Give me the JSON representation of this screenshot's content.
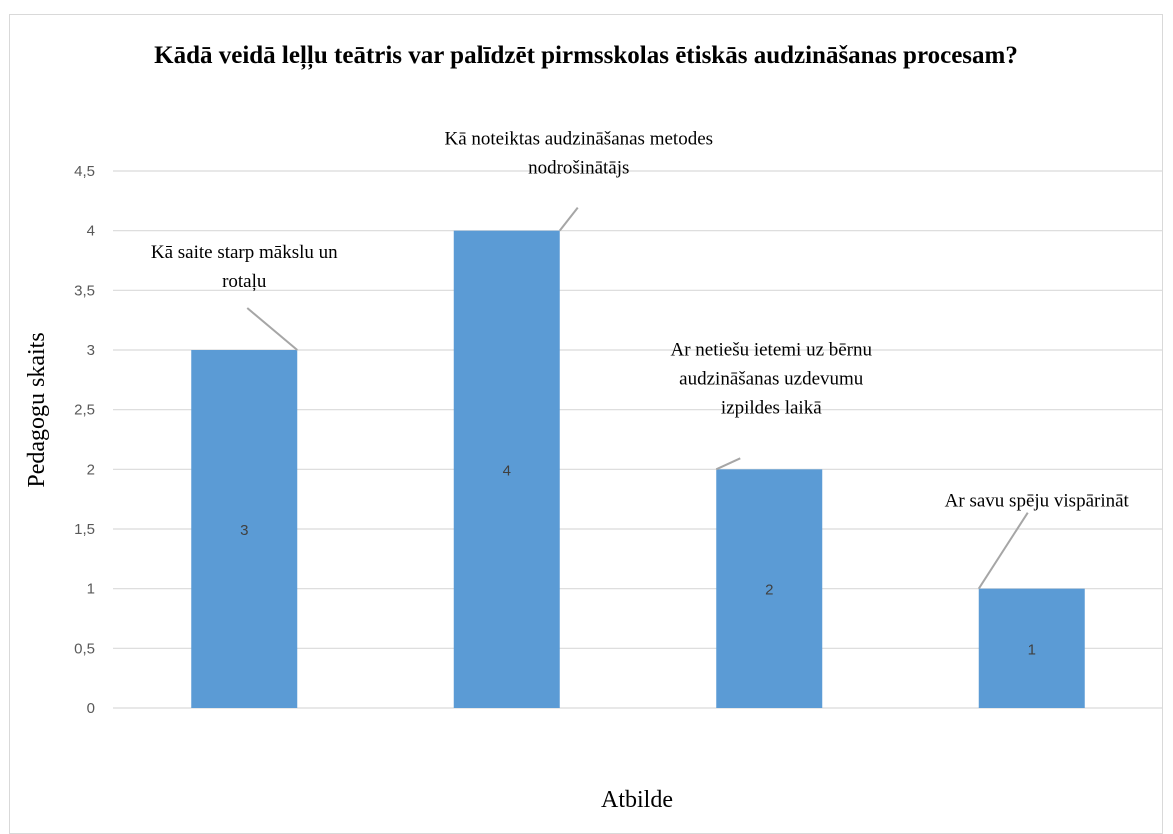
{
  "chart_data": {
    "type": "bar",
    "title": "Kādā veidā leļļu teātris var palīdzēt pirmsskolas ētiskās audzināšanas procesam?",
    "xlabel": "Atbilde",
    "ylabel": "Pedagogu skaits",
    "ylim": [
      0,
      4.5
    ],
    "y_ticks": [
      "0",
      "0,5",
      "1",
      "1,5",
      "2",
      "2,5",
      "3",
      "3,5",
      "4",
      "4,5"
    ],
    "categories": [
      "Kā saite starp mākslu un rotaļu",
      "Kā noteiktas audzināšanas metodes nodrošinātājs",
      "Ar netiešu ietemi uz bērnu audzināšanas uzdevumu izpildes laikā",
      "Ar savu spēju vispārināt"
    ],
    "category_label_lines": [
      [
        "Kā saite starp mākslu un",
        "rotaļu"
      ],
      [
        "Kā  noteiktas audzināšanas metodes",
        "nodrošinātājs"
      ],
      [
        "Ar netiešu ietemi uz bērnu",
        "audzināšanas uzdevumu",
        "izpildes laikā"
      ],
      [
        "Ar savu spēju vispārināt"
      ]
    ],
    "values": [
      3,
      4,
      2,
      1
    ],
    "value_labels": [
      "3",
      "4",
      "2",
      "1"
    ],
    "grid": true,
    "legend": "none",
    "bar_color": "#5b9bd5",
    "grid_color": "#d9d9d9",
    "leader_color": "#a6a6a6"
  }
}
